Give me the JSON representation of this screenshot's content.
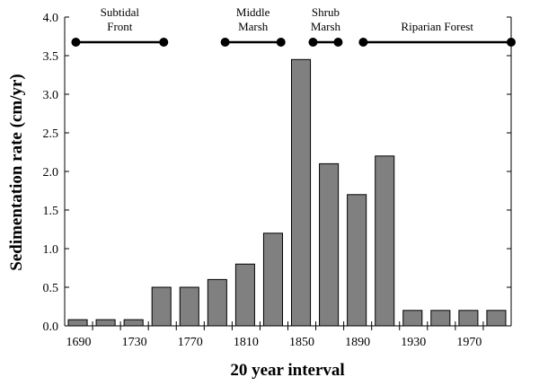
{
  "chart_data": {
    "type": "bar",
    "title": "",
    "xlabel": "20 year interval",
    "ylabel": "Sedimentation rate (cm/yr)",
    "ylim": [
      0,
      4.0
    ],
    "categories": [
      "1690",
      "1710",
      "1730",
      "1750",
      "1770",
      "1790",
      "1810",
      "1830",
      "1850",
      "1870",
      "1890",
      "1910",
      "1930",
      "1950",
      "1970",
      "1990"
    ],
    "values": [
      0.08,
      0.08,
      0.08,
      0.5,
      0.5,
      0.6,
      0.8,
      1.2,
      3.45,
      2.1,
      1.7,
      2.2,
      0.2,
      0.2,
      0.2,
      0.2
    ],
    "x_tick_labels": [
      "1690",
      "1730",
      "1770",
      "1810",
      "1850",
      "1890",
      "1930",
      "1970"
    ],
    "y_tick_labels": [
      "0.0",
      "0.5",
      "1.0",
      "1.5",
      "2.0",
      "2.5",
      "3.0",
      "3.5",
      "4.0"
    ],
    "grid": false,
    "bar_color": "#808080",
    "phases": [
      {
        "label1": "Subtidal",
        "label2": "Front",
        "start": 1688,
        "end": 1751
      },
      {
        "label1": "Middle",
        "label2": "Marsh",
        "start": 1795,
        "end": 1835
      },
      {
        "label1": "Shrub",
        "label2": "Marsh",
        "start": 1858,
        "end": 1876
      },
      {
        "label1": "",
        "label2": "Riparian Forest",
        "start": 1894,
        "end": 2000
      }
    ]
  }
}
